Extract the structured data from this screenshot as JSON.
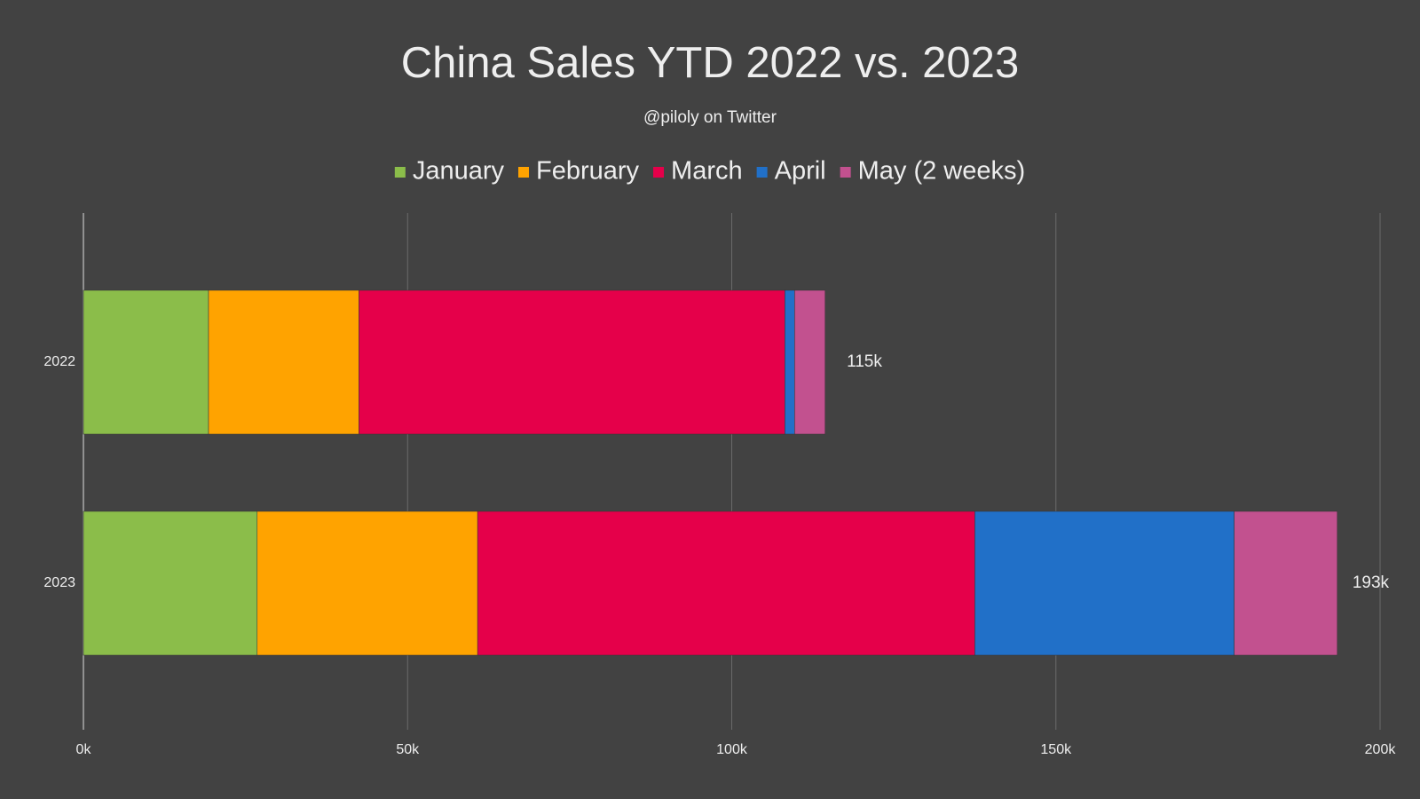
{
  "chart_data": {
    "type": "stacked-bar-horizontal",
    "title": "China Sales YTD 2022 vs. 2023",
    "subtitle": "@piloly on Twitter",
    "categories": [
      "2022",
      "2023"
    ],
    "series": [
      {
        "name": "January",
        "color": "#8bbd4a",
        "values": [
          19300,
          26800
        ]
      },
      {
        "name": "February",
        "color": "#ffa300",
        "values": [
          23200,
          34000
        ]
      },
      {
        "name": "March",
        "color": "#e5004a",
        "values": [
          65700,
          76700
        ]
      },
      {
        "name": "April",
        "color": "#2170c8",
        "values": [
          1500,
          40000
        ]
      },
      {
        "name": "May (2 weeks)",
        "color": "#c2518f",
        "values": [
          4700,
          15900
        ]
      }
    ],
    "totals": {
      "values": [
        115000,
        193000
      ],
      "value_labels": [
        "115k",
        "193k"
      ]
    },
    "xlim": [
      0,
      200000
    ],
    "xticks": [
      {
        "value": 0,
        "label": "0k"
      },
      {
        "value": 50000,
        "label": "50k"
      },
      {
        "value": 100000,
        "label": "100k"
      },
      {
        "value": 150000,
        "label": "150k"
      },
      {
        "value": 200000,
        "label": "200k"
      }
    ],
    "grid": true,
    "legend": "top"
  }
}
